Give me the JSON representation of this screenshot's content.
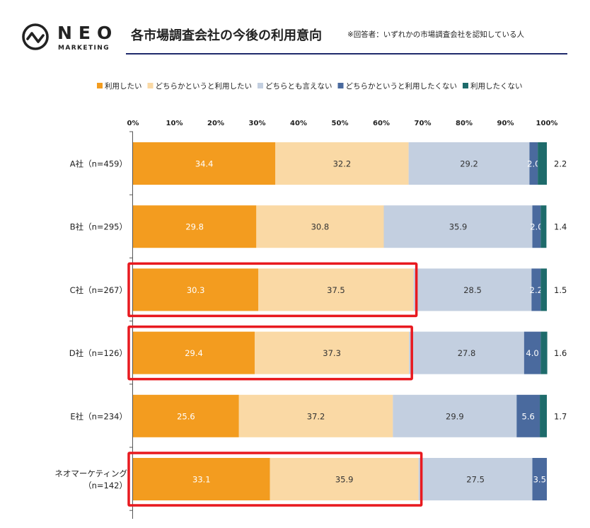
{
  "brand": {
    "name": "NEO",
    "sub": "MARKETING"
  },
  "header": {
    "title": "各市場調査会社の今後の利用意向",
    "note": "※回答者：いずれかの市場調査会社を認知している人"
  },
  "colors": {
    "series": [
      "#F39C1F",
      "#FAD9A5",
      "#C3CFE0",
      "#4A6A9E",
      "#1E6B6B"
    ],
    "highlight": "#E8191F",
    "title_rule": "#1F2A6B"
  },
  "chart_data": {
    "type": "bar",
    "orientation": "horizontal",
    "stacked": true,
    "xlim": [
      0,
      100
    ],
    "x_ticks": [
      "0%",
      "10%",
      "20%",
      "30%",
      "40%",
      "50%",
      "60%",
      "70%",
      "80%",
      "90%",
      "100%"
    ],
    "legend_position": "top-right",
    "categories": [
      [
        "A社（n=459）"
      ],
      [
        "B社（n=295）"
      ],
      [
        "C社（n=267）"
      ],
      [
        "D社（n=126）"
      ],
      [
        "E社（n=234）"
      ],
      [
        "ネオマーケティング",
        "（n=142）"
      ]
    ],
    "series": [
      {
        "name": "利用したい",
        "values": [
          34.4,
          29.8,
          30.3,
          29.4,
          25.6,
          33.1
        ]
      },
      {
        "name": "どちらかというと利用したい",
        "values": [
          32.2,
          30.8,
          37.5,
          37.3,
          37.2,
          35.9
        ]
      },
      {
        "name": "どちらとも言えない",
        "values": [
          29.2,
          35.9,
          28.5,
          27.8,
          29.9,
          27.5
        ]
      },
      {
        "name": "どちらかというと利用したくない",
        "values": [
          2.0,
          2.0,
          2.2,
          4.0,
          5.6,
          3.5
        ]
      },
      {
        "name": "利用したくない",
        "values": [
          2.2,
          1.4,
          1.5,
          1.6,
          1.7,
          0.0
        ]
      }
    ],
    "highlighted_categories": [
      2,
      3,
      5
    ]
  }
}
